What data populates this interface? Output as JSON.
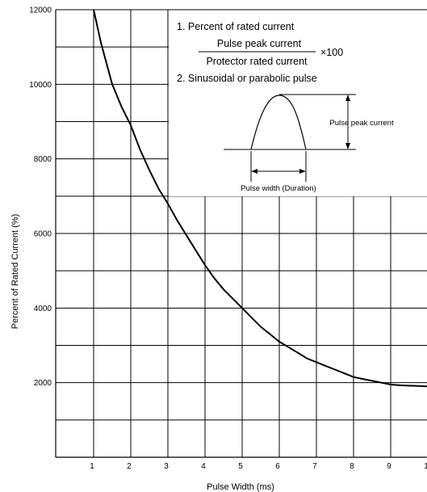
{
  "chart_data": {
    "type": "line",
    "xlabel": "Pulse Width (ms)",
    "ylabel": "Percent of Rated Current (%)",
    "xlim": [
      0,
      10
    ],
    "ylim": [
      0,
      12000
    ],
    "x_ticks": [
      "1",
      "2",
      "3",
      "4",
      "5",
      "6",
      "7",
      "8",
      "9",
      "1"
    ],
    "y_ticks": [
      "2000",
      "4000",
      "6000",
      "8000",
      "10000",
      "12000"
    ],
    "grid": true,
    "series": [
      {
        "x": [
          1.0,
          1.2,
          1.5,
          1.75,
          2.0,
          2.25,
          2.5,
          2.75,
          3.0,
          3.25,
          3.5,
          3.75,
          4.0,
          4.25,
          4.5,
          4.75,
          5.0,
          5.25,
          5.5,
          5.75,
          6.0,
          6.25,
          6.5,
          6.75,
          7.0,
          7.25,
          7.5,
          7.75,
          8.0,
          8.25,
          8.5,
          8.75,
          9.0,
          9.25,
          9.5,
          9.75,
          10.0
        ],
        "values": [
          12000,
          11100,
          10000,
          9400,
          8900,
          8250,
          7700,
          7200,
          6800,
          6350,
          5950,
          5550,
          5150,
          4800,
          4500,
          4250,
          4000,
          3750,
          3500,
          3300,
          3100,
          2950,
          2800,
          2650,
          2550,
          2450,
          2350,
          2250,
          2150,
          2100,
          2050,
          2000,
          1950,
          1930,
          1920,
          1910,
          1900
        ]
      }
    ]
  },
  "notes": {
    "line1": "1. Percent of rated current",
    "numerator": "Pulse peak current",
    "denominator": "Protector rated current",
    "multiplier": "×100",
    "line2": "2. Sinusoidal or parabolic pulse"
  },
  "inset": {
    "peak_label": "Pulse peak current",
    "width_label": "Pulse width (Duration)"
  }
}
